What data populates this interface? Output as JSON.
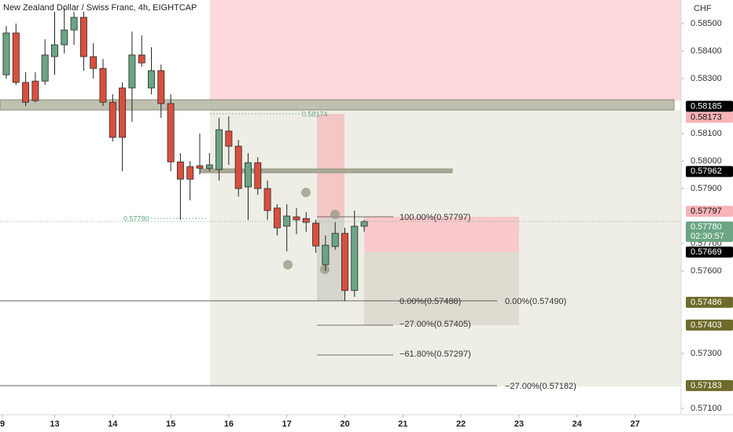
{
  "chart_data": {
    "type": "candlestick",
    "title": "New Zealand Dollar / Swiss Franc, 4h, EIGHTCAP",
    "currency": "CHF",
    "up_color": "#6ba583",
    "down_color": "#d94f3d",
    "open": [
      0.58314,
      0.58466,
      0.58286,
      0.58291,
      0.58291,
      0.5838,
      0.58423,
      0.58477,
      0.58523,
      0.5838,
      0.58337,
      0.58214,
      0.58266,
      0.58266,
      0.58386,
      0.58266,
      0.58329,
      0.58209,
      0.57997,
      0.5798,
      0.57983,
      0.57974,
      0.57969,
      0.58109,
      0.58054,
      0.57906,
      0.57994,
      0.579,
      0.57829,
      0.57763,
      0.57797,
      0.57791,
      0.57774,
      0.57623,
      0.57689,
      0.57737,
      0.57529,
      0.57763
    ],
    "high": [
      0.58491,
      0.585,
      0.58323,
      0.58323,
      0.58443,
      0.58543,
      0.58557,
      0.58543,
      0.58543,
      0.58429,
      0.58371,
      0.58243,
      0.58286,
      0.58471,
      0.58457,
      0.58414,
      0.58351,
      0.58243,
      0.58029,
      0.58,
      0.581,
      0.58029,
      0.58157,
      0.58163,
      0.58077,
      0.58029,
      0.58014,
      0.57929,
      0.57843,
      0.57843,
      0.57829,
      0.57814,
      0.57786,
      0.57729,
      0.57777,
      0.57757,
      0.5782,
      0.57786
    ],
    "low": [
      0.583,
      0.58277,
      0.582,
      0.58214,
      0.58277,
      0.58314,
      0.58391,
      0.58423,
      0.58329,
      0.583,
      0.582,
      0.58071,
      0.57963,
      0.58143,
      0.58343,
      0.58243,
      0.58157,
      0.57963,
      0.57786,
      0.57857,
      0.57951,
      0.57963,
      0.57929,
      0.57986,
      0.57871,
      0.57786,
      0.57877,
      0.57786,
      0.57729,
      0.57671,
      0.57734,
      0.57743,
      0.57666,
      0.576,
      0.57677,
      0.57491,
      0.57506,
      0.57743
    ],
    "close": [
      0.58466,
      0.58286,
      0.58214,
      0.5822,
      0.58386,
      0.58423,
      0.58477,
      0.58523,
      0.5838,
      0.58337,
      0.58214,
      0.58086,
      0.58086,
      0.58386,
      0.58357,
      0.58329,
      0.58209,
      0.57997,
      0.57934,
      0.57934,
      0.57974,
      0.57986,
      0.58114,
      0.58054,
      0.579,
      0.57994,
      0.579,
      0.5782,
      0.57757,
      0.578,
      0.57786,
      0.57777,
      0.57691,
      0.57694,
      0.57737,
      0.57529,
      0.57763,
      0.5778
    ],
    "xlim": [
      -0.65,
      69.76
    ],
    "xticks": [
      {
        "value": -0.4,
        "label": "9"
      },
      {
        "value": 5,
        "label": "13"
      },
      {
        "value": 11,
        "label": "14"
      },
      {
        "value": 17,
        "label": "15"
      },
      {
        "value": 23,
        "label": "16"
      },
      {
        "value": 29,
        "label": "17"
      },
      {
        "value": 35,
        "label": "20"
      },
      {
        "value": 41,
        "label": "21"
      },
      {
        "value": 47,
        "label": "22"
      },
      {
        "value": 53,
        "label": "23"
      },
      {
        "value": 59,
        "label": "24"
      },
      {
        "value": 65,
        "label": "27"
      }
    ],
    "ylim": [
      0.57077,
      0.58586
    ],
    "yticks": [
      {
        "value": 0.585,
        "label": "0.58500"
      },
      {
        "value": 0.584,
        "label": "0.58400"
      },
      {
        "value": 0.583,
        "label": "0.58300"
      },
      {
        "value": 0.581,
        "label": "0.58100"
      },
      {
        "value": 0.58,
        "label": "0.58000"
      },
      {
        "value": 0.579,
        "label": "0.57900"
      },
      {
        "value": 0.577,
        "label": "0.57700"
      },
      {
        "value": 0.576,
        "label": "0.57600"
      },
      {
        "value": 0.573,
        "label": "0.57300"
      },
      {
        "value": 0.571,
        "label": "0.57100"
      }
    ],
    "price_labels": [
      {
        "label": "0.58185",
        "color": "#000000"
      },
      {
        "label": "0.58173",
        "color": "#f8b4b8"
      },
      {
        "label": "0.57962",
        "color": "#000000"
      },
      {
        "label": "0.57797",
        "color": "#f8b4b8"
      },
      {
        "label": "0.57780",
        "color": "#6ba583",
        "countdown": "02:30:57"
      },
      {
        "label": "0.57669",
        "color": "#000000"
      },
      {
        "label": "0.57486",
        "color": "#6e6b2c"
      },
      {
        "label": "0.57403",
        "color": "#6e6b2c"
      },
      {
        "label": "0.57183",
        "color": "#6e6b2c"
      }
    ],
    "fib_labels": [
      "100.00%(0.57797)",
      "0.00%(0.57488)",
      "−27.00%(0.57405)",
      "−61.80%(0.57297)",
      "0.00%(0.57490)",
      "−27.00%(0.57182)"
    ],
    "range_labels": [
      "0.58174",
      "0.57790"
    ]
  }
}
